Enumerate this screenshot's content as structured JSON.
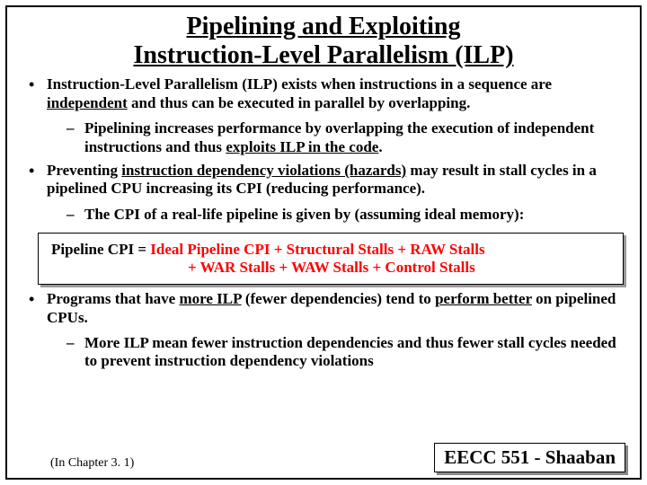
{
  "title": {
    "line1": "Pipelining and Exploiting",
    "line2": "Instruction-Level Parallelism (ILP)"
  },
  "bullets": {
    "b1": {
      "text_a": "Instruction-Level Parallelism  (ILP) exists when instructions in a sequence are ",
      "u1": "independent",
      "text_b": " and thus can be executed in parallel by overlapping.",
      "sub1_a": "Pipelining increases performance by overlapping the execution of independent instructions and thus ",
      "sub1_u": "exploits ILP in the code",
      "sub1_b": "."
    },
    "b2": {
      "text_a": "Preventing ",
      "u1": "instruction dependency violations  (hazards)",
      "text_b": " may result in stall cycles in a pipelined CPU increasing its CPI (reducing performance).",
      "sub1": "The CPI of a real-life pipeline is given by (assuming ideal memory):"
    },
    "b3": {
      "text_a": "Programs that have ",
      "u1": "more ILP",
      "text_b": " (fewer dependencies) tend to ",
      "u2": "perform better",
      "text_c": " on pipelined CPUs.",
      "sub1": "More ILP mean fewer instruction dependencies and thus fewer stall cycles needed to prevent instruction dependency violations"
    }
  },
  "formula": {
    "lhs": "Pipeline  CPI  =  ",
    "rhs1": "Ideal Pipeline CPI +  Structural Stalls  +  RAW Stalls",
    "rhs2": "+  WAR Stalls  +  WAW Stalls  +  Control Stalls"
  },
  "note": "(In  Chapter 3. 1)",
  "credit": "EECC 551 - Shaaban"
}
